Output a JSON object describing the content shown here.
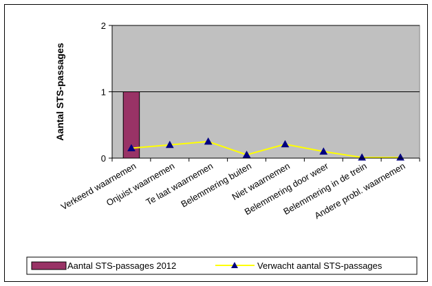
{
  "chart_data": {
    "type": "bar",
    "categories": [
      "Verkeerd waarnemen",
      "Onjuist waarnemen",
      "Te laat waarnemen",
      "Belemmering buiten",
      "Niet waarnemen",
      "Belemmering door weer",
      "Belemmering in de trein",
      "Andere probl. waarnemen"
    ],
    "series": [
      {
        "name": "Aantal STS-passages 2012",
        "type": "bar",
        "color": "#993366",
        "values": [
          1,
          0,
          0,
          0,
          0,
          0,
          0,
          0
        ]
      },
      {
        "name": "Verwacht aantal STS-passages",
        "type": "line",
        "color": "#ffff00",
        "marker_color": "#000080",
        "marker": "triangle",
        "values": [
          0.15,
          0.2,
          0.25,
          0.05,
          0.21,
          0.1,
          0.01,
          0.01
        ]
      }
    ],
    "ylabel": "Aantal STS-passages",
    "ylim": [
      0,
      2
    ],
    "yticks": [
      0,
      1,
      2
    ],
    "plot_background": "#c0c0c0",
    "grid": true,
    "legend_position": "bottom"
  }
}
